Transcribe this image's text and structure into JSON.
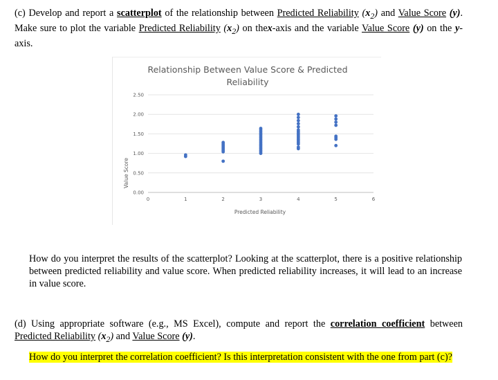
{
  "part_c": {
    "prefix": "(c) Develop and report a",
    "scatterplot": "scatterplot",
    "text1": "of the relationship between",
    "var_x": "Predicted Reliability",
    "var_x_symbol": "(x",
    "sub": "2",
    "close": ")",
    "and": "and",
    "var_y": "Value Score",
    "var_y_symbol": "(y)",
    "text2": ". Make sure to plot the variable",
    "text3": "on the",
    "x_axis": "x",
    "text4": "-axis and the variable",
    "text5": "on the",
    "y_axis": "y",
    "text6": "-axis."
  },
  "interpretation_c": "How do you interpret the results of the scatterplot? Looking at the scatterplot, there is a positive relationship between predicted reliability and value score. When predicted reliability increases, it will lead to an increase in value score.",
  "part_d": {
    "prefix": "(d) Using appropriate software (e.g., MS Excel), compute and report the",
    "corr": "correlation coefficient",
    "text1": "between",
    "text2": "and",
    "end": "."
  },
  "question_d": "How do you interpret the correlation coefficient? Is this interpretation consistent with the one from part (c)?",
  "chart_data": {
    "type": "scatter",
    "title_line1": "Relationship Between Value Score & Predicted",
    "title_line2": "Reliability",
    "xlabel": "Predicted Reliability",
    "ylabel": "Value Score",
    "xlim": [
      0,
      6
    ],
    "ylim": [
      0,
      2.5
    ],
    "x_ticks": [
      "0",
      "1",
      "2",
      "3",
      "4",
      "5",
      "6"
    ],
    "y_ticks": [
      "0.00",
      "0.50",
      "1.00",
      "1.50",
      "2.00",
      "2.50"
    ],
    "grid": true,
    "marker_color": "#4472c4",
    "points": [
      [
        1,
        0.92
      ],
      [
        1,
        0.96
      ],
      [
        2,
        0.8
      ],
      [
        2,
        1.04
      ],
      [
        2,
        1.08
      ],
      [
        2,
        1.12
      ],
      [
        2,
        1.16
      ],
      [
        2,
        1.2
      ],
      [
        2,
        1.24
      ],
      [
        2,
        1.28
      ],
      [
        3,
        1.0
      ],
      [
        3,
        1.04
      ],
      [
        3,
        1.08
      ],
      [
        3,
        1.12
      ],
      [
        3,
        1.16
      ],
      [
        3,
        1.2
      ],
      [
        3,
        1.24
      ],
      [
        3,
        1.28
      ],
      [
        3,
        1.32
      ],
      [
        3,
        1.36
      ],
      [
        3,
        1.4
      ],
      [
        3,
        1.44
      ],
      [
        3,
        1.48
      ],
      [
        3,
        1.52
      ],
      [
        3,
        1.56
      ],
      [
        3,
        1.6
      ],
      [
        3,
        1.64
      ],
      [
        4,
        1.12
      ],
      [
        4,
        1.16
      ],
      [
        4,
        1.24
      ],
      [
        4,
        1.28
      ],
      [
        4,
        1.32
      ],
      [
        4,
        1.36
      ],
      [
        4,
        1.4
      ],
      [
        4,
        1.44
      ],
      [
        4,
        1.48
      ],
      [
        4,
        1.52
      ],
      [
        4,
        1.56
      ],
      [
        4,
        1.6
      ],
      [
        4,
        1.68
      ],
      [
        4,
        1.76
      ],
      [
        4,
        1.84
      ],
      [
        4,
        1.92
      ],
      [
        4,
        2.0
      ],
      [
        5,
        1.2
      ],
      [
        5,
        1.36
      ],
      [
        5,
        1.4
      ],
      [
        5,
        1.44
      ],
      [
        5,
        1.72
      ],
      [
        5,
        1.8
      ],
      [
        5,
        1.88
      ],
      [
        5,
        1.96
      ]
    ]
  }
}
